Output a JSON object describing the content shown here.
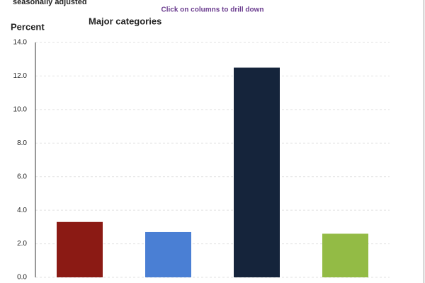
{
  "chart_data": {
    "type": "bar",
    "title": "Major categories",
    "subtitle": "seasonally adjusted",
    "annotation": "Click on columns to drill down",
    "ylabel": "Percent",
    "categories": [
      null,
      null,
      null,
      null
    ],
    "values": [
      3.3,
      2.7,
      12.5,
      2.6
    ],
    "colors": [
      "#8b1a14",
      "#4a7fd4",
      "#15243b",
      "#93bb45"
    ],
    "ylim": [
      0,
      14
    ],
    "yticks": [
      {
        "value": 0,
        "label": "0.0"
      },
      {
        "value": 2,
        "label": "2.0"
      },
      {
        "value": 4,
        "label": "4.0"
      },
      {
        "value": 6,
        "label": "6.0"
      },
      {
        "value": 8,
        "label": "8.0"
      },
      {
        "value": 10,
        "label": "10.0"
      },
      {
        "value": 12,
        "label": "12.0"
      },
      {
        "value": 14,
        "label": "14.0"
      }
    ],
    "grid": true
  }
}
